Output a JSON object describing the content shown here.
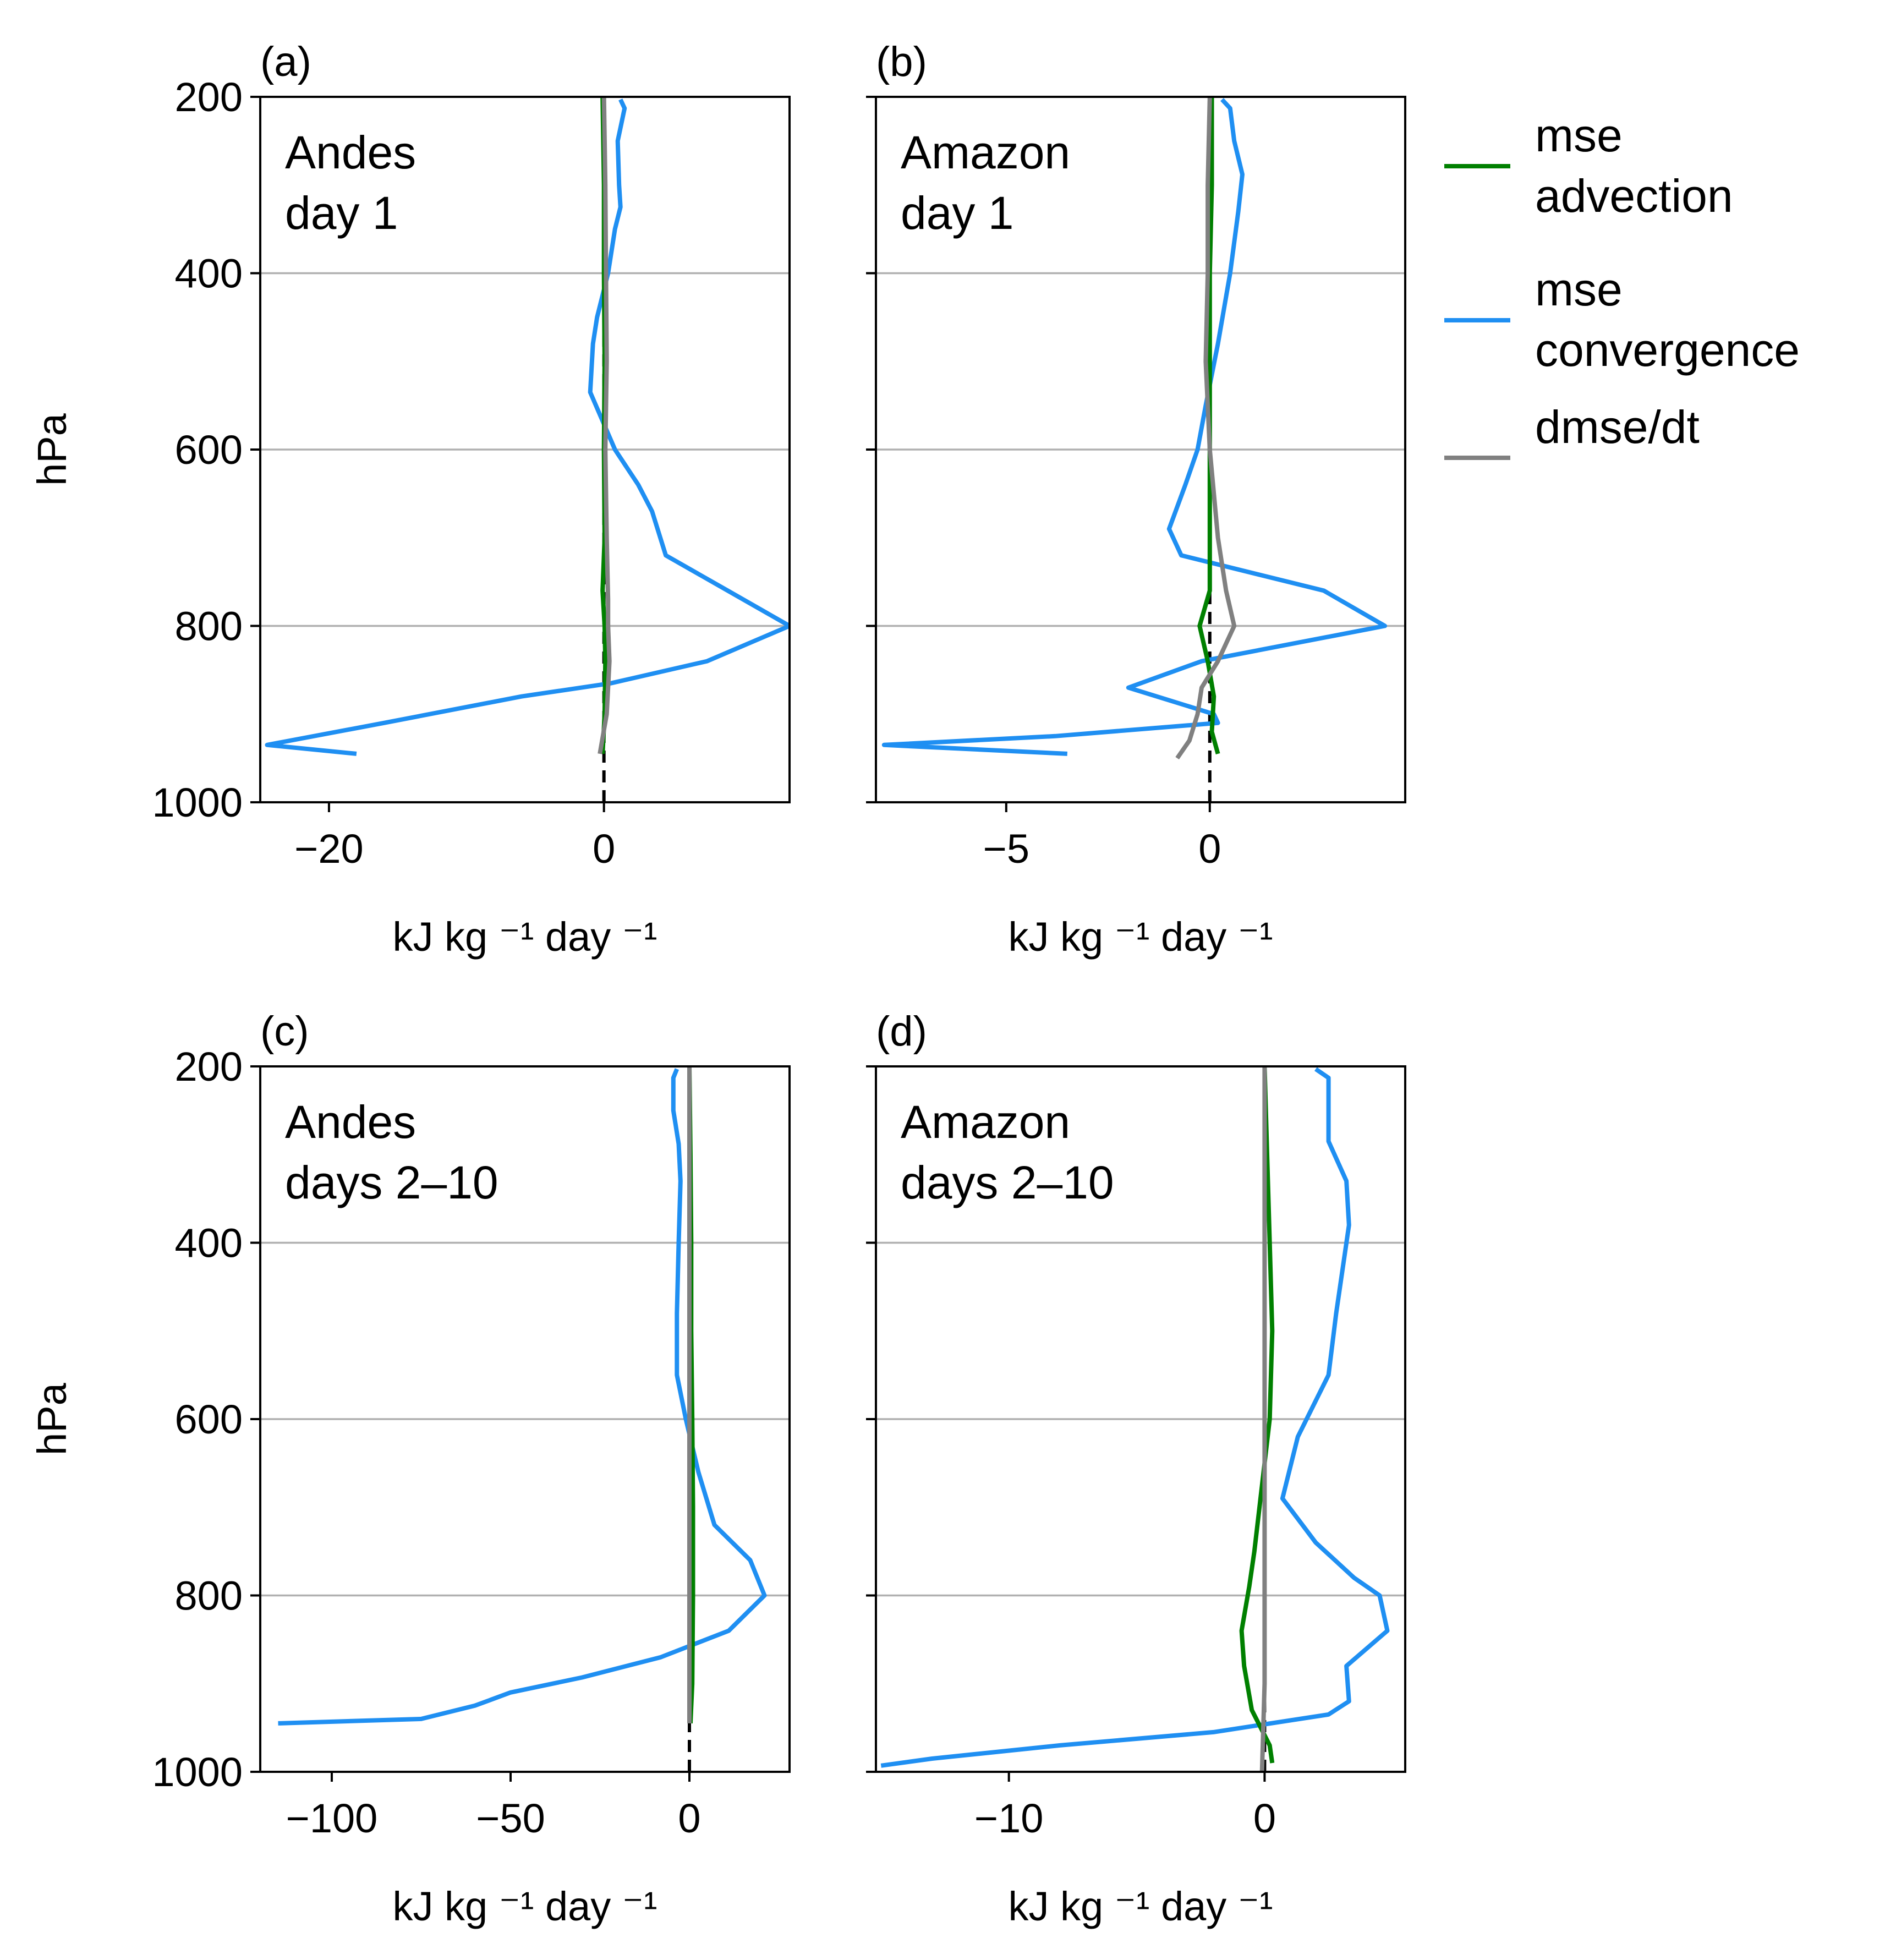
{
  "legend": {
    "placement": "upper-right, outside panels",
    "entries": [
      {
        "lines": [
          "mse",
          "advection"
        ],
        "color": "#008000"
      },
      {
        "lines": [
          "mse",
          "convergence"
        ],
        "color": "#1f8ff2"
      },
      {
        "lines": [
          "dmse/dt"
        ],
        "color": "#808080"
      }
    ]
  },
  "colors": {
    "advection": "#008000",
    "convergence": "#1f8ff2",
    "dmse": "#808080",
    "grid": "#b0b0b0",
    "zero_line": "#000000"
  },
  "chart_data": [
    {
      "type": "line",
      "panel_label": "(a)",
      "annotation": [
        "Andes",
        "day 1"
      ],
      "ylabel": "hPa",
      "xlabel": "kJ kg ⁻¹ day ⁻¹",
      "ylim": [
        1000,
        200
      ],
      "xlim": [
        -25,
        13.5
      ],
      "xticks": [
        -20,
        0
      ],
      "xtick_labels": [
        "−20",
        "0"
      ],
      "yticks": [
        200,
        400,
        600,
        800,
        1000
      ],
      "ytick_labels": [
        "200",
        "400",
        "600",
        "800",
        "1000"
      ],
      "grid": "horizontal at 400, 600, 800",
      "series": [
        {
          "key": "convergence",
          "pressure": [
            203,
            213,
            250,
            300,
            325,
            350,
            400,
            450,
            480,
            535,
            600,
            640,
            670,
            720,
            760,
            800,
            840,
            865,
            880,
            910,
            935,
            945
          ],
          "values": [
            1.2,
            1.5,
            1.0,
            1.1,
            1.2,
            0.8,
            0.3,
            -0.5,
            -0.8,
            -1.0,
            0.8,
            2.5,
            3.5,
            4.5,
            9.0,
            13.5,
            7.5,
            0.5,
            -6.0,
            -16.0,
            -24.5,
            -18.0
          ]
        },
        {
          "key": "advection",
          "pressure": [
            200,
            300,
            400,
            500,
            600,
            700,
            760,
            800,
            840,
            900,
            945
          ],
          "values": [
            -0.1,
            0.0,
            0.0,
            0.05,
            0.0,
            0.05,
            -0.1,
            0.05,
            0.1,
            0.05,
            -0.1
          ]
        },
        {
          "key": "dmse",
          "pressure": [
            200,
            300,
            400,
            500,
            600,
            700,
            770,
            800,
            840,
            900,
            945
          ],
          "values": [
            0.0,
            0.1,
            0.15,
            0.2,
            0.1,
            0.2,
            0.3,
            0.3,
            0.4,
            0.2,
            -0.3
          ]
        }
      ]
    },
    {
      "type": "line",
      "panel_label": "(b)",
      "annotation": [
        "Amazon",
        "day 1"
      ],
      "ylabel": "",
      "xlabel": "kJ kg ⁻¹ day ⁻¹",
      "ylim": [
        1000,
        200
      ],
      "xlim": [
        -8.2,
        4.8
      ],
      "xticks": [
        -5,
        0
      ],
      "xtick_labels": [
        "−5",
        "0"
      ],
      "yticks": [
        200,
        400,
        600,
        800,
        1000
      ],
      "ytick_labels": [
        "",
        "",
        "",
        "",
        ""
      ],
      "grid": "horizontal at 400, 600, 800",
      "series": [
        {
          "key": "convergence",
          "pressure": [
            203,
            213,
            250,
            288,
            330,
            400,
            480,
            550,
            600,
            640,
            690,
            720,
            760,
            800,
            840,
            870,
            900,
            910,
            925,
            935,
            945
          ],
          "values": [
            0.3,
            0.5,
            0.6,
            0.8,
            0.7,
            0.5,
            0.2,
            -0.1,
            -0.3,
            -0.6,
            -1.0,
            -0.7,
            2.8,
            4.3,
            -0.2,
            -2.0,
            0.1,
            0.2,
            -3.8,
            -8.0,
            -3.5
          ]
        },
        {
          "key": "advection",
          "pressure": [
            200,
            300,
            400,
            500,
            600,
            700,
            760,
            800,
            840,
            880,
            920,
            945
          ],
          "values": [
            0.05,
            0.05,
            0.0,
            0.0,
            0.0,
            0.0,
            0.0,
            -0.25,
            -0.05,
            0.1,
            0.05,
            0.2
          ]
        },
        {
          "key": "dmse",
          "pressure": [
            200,
            300,
            400,
            500,
            600,
            700,
            760,
            800,
            840,
            870,
            900,
            930,
            950
          ],
          "values": [
            0.0,
            -0.05,
            -0.05,
            -0.1,
            0.0,
            0.2,
            0.4,
            0.6,
            0.2,
            -0.2,
            -0.3,
            -0.5,
            -0.8
          ]
        }
      ]
    },
    {
      "type": "line",
      "panel_label": "(c)",
      "annotation": [
        "Andes",
        "days 2–10"
      ],
      "ylabel": "hPa",
      "xlabel": "kJ kg ⁻¹ day ⁻¹",
      "ylim": [
        1000,
        200
      ],
      "xlim": [
        -120,
        28
      ],
      "xticks": [
        -100,
        -50,
        0
      ],
      "xtick_labels": [
        "−100",
        "−50",
        "0"
      ],
      "yticks": [
        200,
        400,
        600,
        800,
        1000
      ],
      "ytick_labels": [
        "200",
        "400",
        "600",
        "800",
        "1000"
      ],
      "grid": "horizontal at 400, 600, 800",
      "series": [
        {
          "key": "convergence",
          "pressure": [
            203,
            213,
            250,
            288,
            330,
            400,
            480,
            550,
            600,
            660,
            720,
            760,
            800,
            840,
            870,
            893,
            910,
            925,
            940,
            945
          ],
          "values": [
            -3.5,
            -4.5,
            -4.5,
            -3.0,
            -2.5,
            -3.0,
            -3.5,
            -3.5,
            -1.0,
            2.5,
            7.0,
            17.0,
            21.0,
            11.0,
            -8.0,
            -30.0,
            -50.0,
            -60.0,
            -75.0,
            -115.0
          ]
        },
        {
          "key": "advection",
          "pressure": [
            200,
            300,
            400,
            500,
            600,
            700,
            800,
            900,
            945
          ],
          "values": [
            0.0,
            0.3,
            0.5,
            0.5,
            0.8,
            1.0,
            1.0,
            0.8,
            0.3
          ]
        },
        {
          "key": "dmse",
          "pressure": [
            200,
            300,
            400,
            500,
            600,
            700,
            800,
            900,
            945
          ],
          "values": [
            0.0,
            0.0,
            0.0,
            0.0,
            0.0,
            0.0,
            0.0,
            0.0,
            0.0
          ]
        }
      ]
    },
    {
      "type": "line",
      "panel_label": "(d)",
      "annotation": [
        "Amazon",
        "days 2–10"
      ],
      "ylabel": "",
      "xlabel": "kJ kg ⁻¹ day ⁻¹",
      "ylim": [
        1000,
        200
      ],
      "xlim": [
        -15.2,
        5.5
      ],
      "xticks": [
        -10,
        0
      ],
      "xtick_labels": [
        "−10",
        "0"
      ],
      "yticks": [
        200,
        400,
        600,
        800,
        1000
      ],
      "ytick_labels": [
        "",
        "",
        "",
        "",
        ""
      ],
      "grid": "horizontal at 400, 600, 800",
      "series": [
        {
          "key": "convergence",
          "pressure": [
            203,
            213,
            285,
            330,
            380,
            480,
            550,
            620,
            690,
            740,
            780,
            800,
            840,
            880,
            920,
            935,
            955,
            970,
            985,
            993
          ],
          "values": [
            2.0,
            2.5,
            2.5,
            3.2,
            3.3,
            2.8,
            2.5,
            1.3,
            0.7,
            2.0,
            3.5,
            4.5,
            4.8,
            3.2,
            3.3,
            2.5,
            -2.0,
            -8.0,
            -13.0,
            -15.0
          ]
        },
        {
          "key": "advection",
          "pressure": [
            200,
            300,
            400,
            500,
            600,
            650,
            700,
            750,
            790,
            840,
            880,
            930,
            970,
            990
          ],
          "values": [
            0.0,
            0.1,
            0.2,
            0.3,
            0.2,
            0.0,
            -0.2,
            -0.4,
            -0.6,
            -0.9,
            -0.8,
            -0.5,
            0.2,
            0.3
          ]
        },
        {
          "key": "dmse",
          "pressure": [
            200,
            300,
            400,
            500,
            600,
            700,
            800,
            900,
            1000
          ],
          "values": [
            0.0,
            0.0,
            0.0,
            0.0,
            0.0,
            0.0,
            0.0,
            0.0,
            -0.1
          ]
        }
      ]
    }
  ]
}
